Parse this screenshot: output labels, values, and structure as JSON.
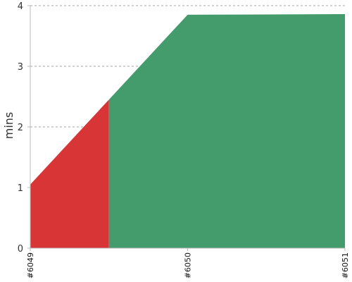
{
  "chart_data": {
    "type": "area",
    "title": "",
    "xlabel": "",
    "ylabel": "mins",
    "x_ticks": [
      "#6049",
      "#6050",
      "#6051"
    ],
    "ylim": [
      0,
      4
    ],
    "y_ticks": [
      0,
      1,
      2,
      3,
      4
    ],
    "grid": true,
    "legend": "none",
    "colors": {
      "fail": "#d83537",
      "success": "#449b6c"
    },
    "build_points": [
      {
        "build": "#6049",
        "x": 0,
        "y": 1.05
      },
      {
        "build": "#6050",
        "x": 1,
        "y": 3.85
      },
      {
        "build": "#6051",
        "x": 2,
        "y": 3.86
      }
    ],
    "status_segments": [
      {
        "status": "fail",
        "x_start": 0,
        "x_end": 0.5
      },
      {
        "status": "success",
        "x_start": 0.5,
        "x_end": 2
      }
    ]
  }
}
